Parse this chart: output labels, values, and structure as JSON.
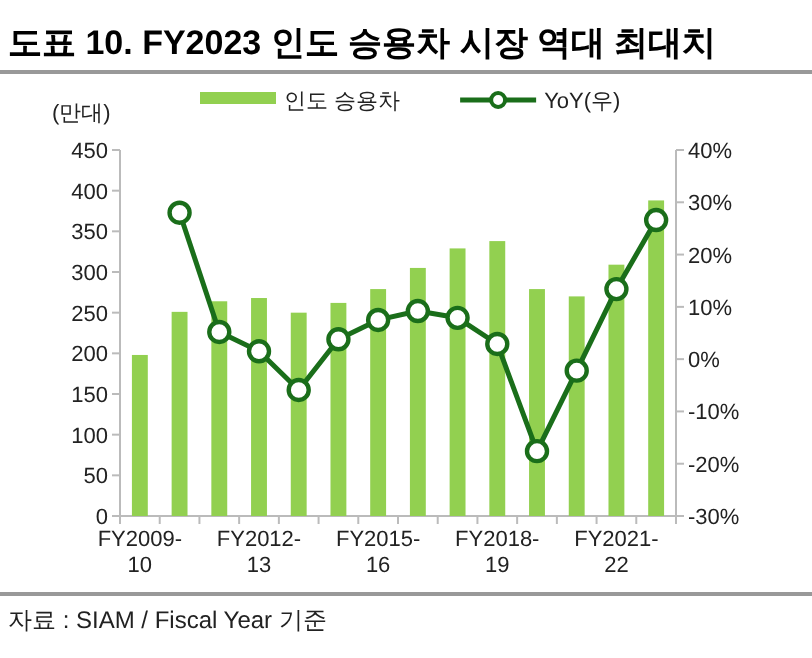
{
  "chart_data": {
    "type": "bar",
    "title": "도표 10. FY2023 인도 승용차 시장 역대 최대치",
    "ylabel": "(만대)",
    "categories": [
      "FY2009-\n10",
      null,
      null,
      "FY2012-\n13",
      null,
      null,
      "FY2015-\n16",
      null,
      null,
      "FY2018-\n19",
      null,
      null,
      "FY2021-\n22",
      null
    ],
    "series": [
      {
        "name": "인도 승용차",
        "color": "#92d050",
        "values": [
          198,
          251,
          264,
          268,
          250,
          262,
          279,
          305,
          329,
          338,
          279,
          270,
          309,
          388
        ]
      },
      {
        "name": "YoY(우)",
        "type": "line",
        "axis": "y2",
        "color": "#1a6e1a",
        "values": [
          null,
          28,
          5.2,
          1.5,
          -5.9,
          3.8,
          7.5,
          9.2,
          7.9,
          2.9,
          -17.6,
          -2.2,
          13.4,
          26.6
        ]
      }
    ],
    "marker": "circle",
    "ylim": [
      0,
      450
    ],
    "yticks": [
      0,
      50,
      100,
      150,
      200,
      250,
      300,
      350,
      400,
      450
    ],
    "y2lim": [
      -30,
      40
    ],
    "y2ticks": [
      {
        "value": -30,
        "label": "-30%"
      },
      {
        "value": -20,
        "label": "-20%"
      },
      {
        "value": -10,
        "label": "-10%"
      },
      {
        "value": 0,
        "label": "0%"
      },
      {
        "value": 10,
        "label": "10%"
      },
      {
        "value": 20,
        "label": "20%"
      },
      {
        "value": 30,
        "label": "30%"
      },
      {
        "value": 40,
        "label": "40%"
      }
    ],
    "grid": false,
    "legend": "top",
    "annotations": [
      "자료 : SIAM / Fiscal Year 기준"
    ]
  }
}
